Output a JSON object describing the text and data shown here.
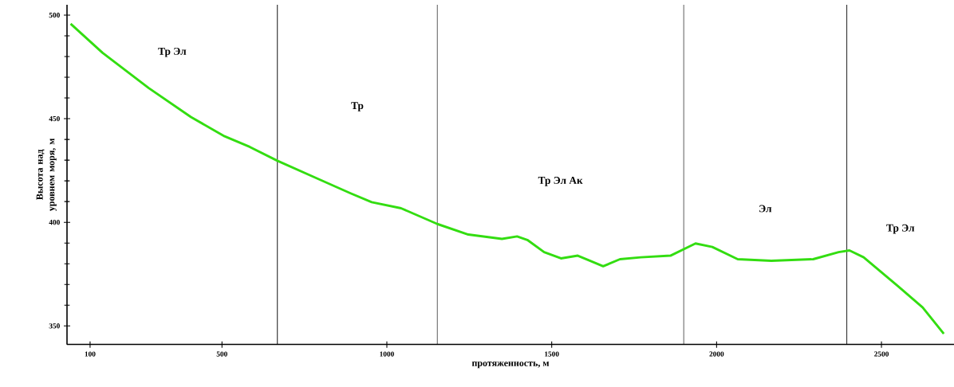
{
  "chart_data": {
    "type": "line",
    "xlabel": "протяженность, м",
    "ylabel": "Высота над уровнем моря, м",
    "xlim": [
      30,
      2720
    ],
    "ylim": [
      341,
      505
    ],
    "xticks": [
      100,
      500,
      1000,
      1500,
      2000,
      2500
    ],
    "yticks": [
      350,
      400,
      450,
      500
    ],
    "grid": false,
    "marker": "none",
    "line_style": "solid",
    "series": [
      {
        "color": "#33dd11",
        "x": [
          41,
          138,
          278,
          406,
          508,
          584,
          668,
          788,
          890,
          954,
          1043,
          1153,
          1247,
          1349,
          1395,
          1426,
          1477,
          1528,
          1579,
          1617,
          1656,
          1707,
          1770,
          1860,
          1936,
          1987,
          2064,
          2166,
          2293,
          2370,
          2403,
          2446,
          2548,
          2625,
          2689
        ],
        "values": [
          495.8,
          481.8,
          464.8,
          450.8,
          441.5,
          436.4,
          429.7,
          421.2,
          414,
          409.7,
          406.8,
          399.2,
          394.1,
          392,
          393.2,
          391.5,
          385.6,
          382.6,
          383.9,
          381.4,
          378.8,
          382.2,
          383.1,
          383.9,
          389.8,
          388.1,
          382.2,
          381.4,
          382.2,
          385.6,
          386.4,
          383.1,
          369.5,
          358.9,
          346.2
        ]
      }
    ],
    "ref_lines": [
      {
        "axis": "x",
        "value": 668,
        "color": "#000000"
      },
      {
        "axis": "x",
        "value": 1153,
        "color": "#000000"
      },
      {
        "axis": "x",
        "value": 1900,
        "color": "#000000"
      },
      {
        "axis": "x",
        "value": 2395,
        "color": "#000000"
      }
    ],
    "annotations": [
      "Тр Эл",
      "Тр",
      "Тр Эл Ак",
      "Эл",
      "Тр Эл"
    ]
  }
}
